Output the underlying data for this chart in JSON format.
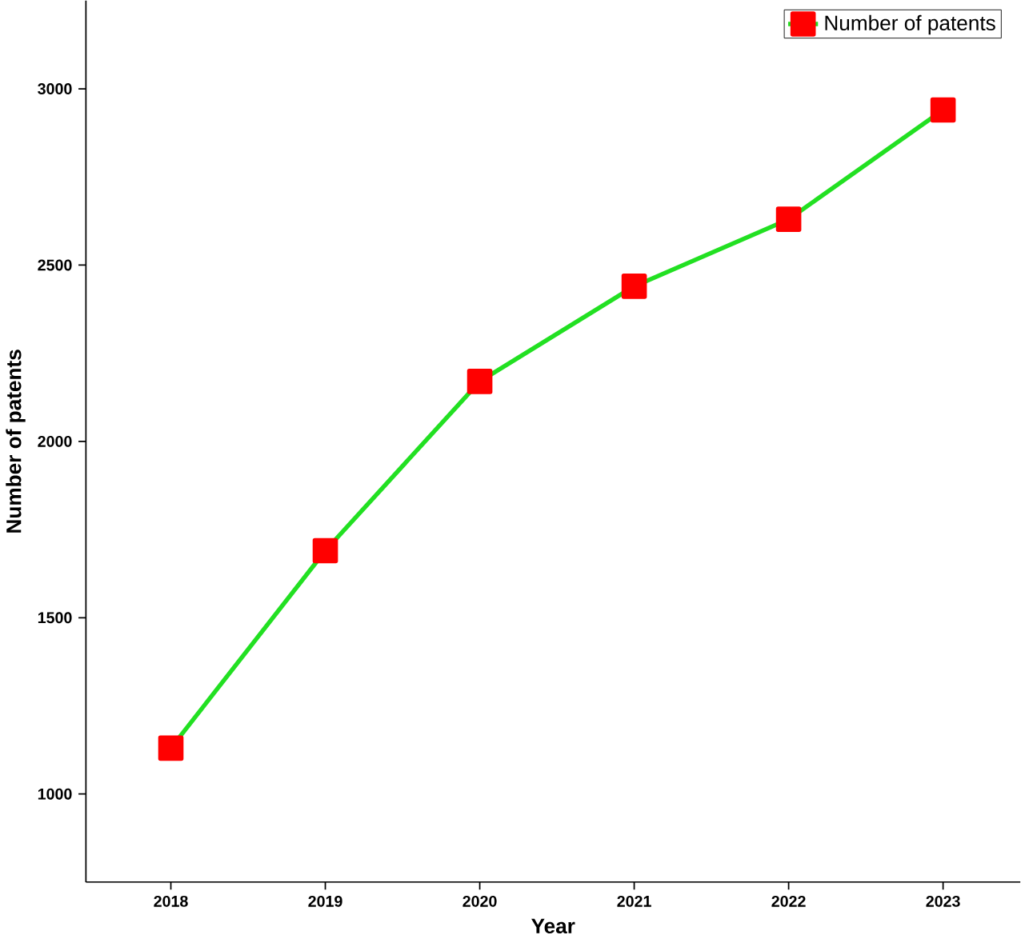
{
  "chart_data": {
    "type": "line",
    "xlabel": "Year",
    "ylabel": "Number of patents",
    "x": [
      2018,
      2019,
      2020,
      2021,
      2022,
      2023
    ],
    "series": [
      {
        "name": "Number of patents",
        "color": "#22e022",
        "values": [
          1130,
          1690,
          2170,
          2440,
          2630,
          2940
        ]
      }
    ],
    "xlim": [
      2017.45,
      2023.5
    ],
    "ylim": [
      750,
      3250
    ],
    "xticks": [
      2018,
      2019,
      2020,
      2021,
      2022,
      2023
    ],
    "yticks": [
      1000,
      1500,
      2000,
      2500,
      3000
    ],
    "marker": "square",
    "line_style": "solid",
    "legend": "top right",
    "grid": false
  }
}
